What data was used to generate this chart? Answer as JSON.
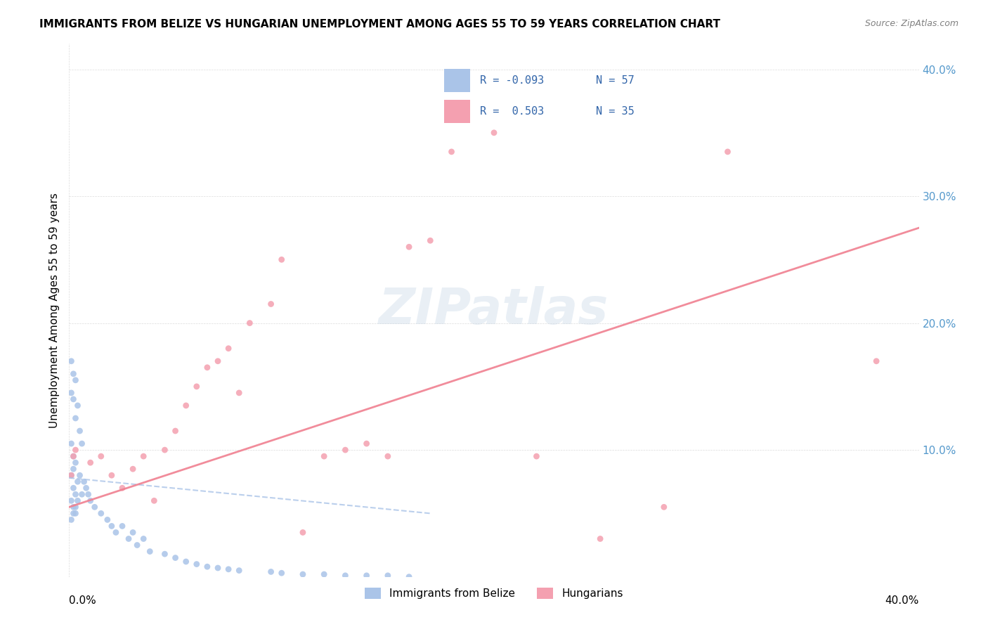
{
  "title": "IMMIGRANTS FROM BELIZE VS HUNGARIAN UNEMPLOYMENT AMONG AGES 55 TO 59 YEARS CORRELATION CHART",
  "source": "Source: ZipAtlas.com",
  "ylabel": "Unemployment Among Ages 55 to 59 years",
  "xlim": [
    0.0,
    0.4
  ],
  "ylim": [
    0.0,
    0.42
  ],
  "watermark": "ZIPatlas",
  "color_belize": "#aac4e8",
  "color_hungarian": "#f4a0b0",
  "color_belize_line": "#aac4e8",
  "color_hungarian_line": "#f08090",
  "belize_scatter_x": [
    0.001,
    0.002,
    0.003,
    0.001,
    0.002,
    0.004,
    0.003,
    0.005,
    0.006,
    0.002,
    0.001,
    0.003,
    0.002,
    0.001,
    0.004,
    0.002,
    0.003,
    0.001,
    0.002,
    0.003,
    0.005,
    0.007,
    0.008,
    0.006,
    0.004,
    0.003,
    0.002,
    0.001,
    0.009,
    0.01,
    0.012,
    0.015,
    0.018,
    0.02,
    0.025,
    0.03,
    0.035,
    0.022,
    0.028,
    0.032,
    0.038,
    0.045,
    0.05,
    0.055,
    0.06,
    0.065,
    0.07,
    0.075,
    0.08,
    0.095,
    0.1,
    0.11,
    0.12,
    0.13,
    0.14,
    0.15,
    0.16
  ],
  "belize_scatter_y": [
    0.17,
    0.16,
    0.155,
    0.145,
    0.14,
    0.135,
    0.125,
    0.115,
    0.105,
    0.095,
    0.105,
    0.09,
    0.085,
    0.08,
    0.075,
    0.07,
    0.065,
    0.06,
    0.055,
    0.05,
    0.08,
    0.075,
    0.07,
    0.065,
    0.06,
    0.055,
    0.05,
    0.045,
    0.065,
    0.06,
    0.055,
    0.05,
    0.045,
    0.04,
    0.04,
    0.035,
    0.03,
    0.035,
    0.03,
    0.025,
    0.02,
    0.018,
    0.015,
    0.012,
    0.01,
    0.008,
    0.007,
    0.006,
    0.005,
    0.004,
    0.003,
    0.002,
    0.002,
    0.001,
    0.001,
    0.001,
    0.0
  ],
  "hungarian_scatter_x": [
    0.001,
    0.002,
    0.003,
    0.01,
    0.015,
    0.02,
    0.025,
    0.03,
    0.035,
    0.04,
    0.045,
    0.05,
    0.055,
    0.06,
    0.065,
    0.07,
    0.075,
    0.08,
    0.085,
    0.095,
    0.1,
    0.11,
    0.12,
    0.13,
    0.14,
    0.15,
    0.16,
    0.17,
    0.18,
    0.2,
    0.22,
    0.25,
    0.28,
    0.31,
    0.38
  ],
  "hungarian_scatter_y": [
    0.08,
    0.095,
    0.1,
    0.09,
    0.095,
    0.08,
    0.07,
    0.085,
    0.095,
    0.06,
    0.1,
    0.115,
    0.135,
    0.15,
    0.165,
    0.17,
    0.18,
    0.145,
    0.2,
    0.215,
    0.25,
    0.035,
    0.095,
    0.1,
    0.105,
    0.095,
    0.26,
    0.265,
    0.335,
    0.35,
    0.095,
    0.03,
    0.055,
    0.335,
    0.17
  ],
  "belize_trend_x": [
    0.0,
    0.17
  ],
  "belize_trend_y": [
    0.078,
    0.05
  ],
  "hungarian_trend_x": [
    0.0,
    0.4
  ],
  "hungarian_trend_y": [
    0.055,
    0.275
  ]
}
